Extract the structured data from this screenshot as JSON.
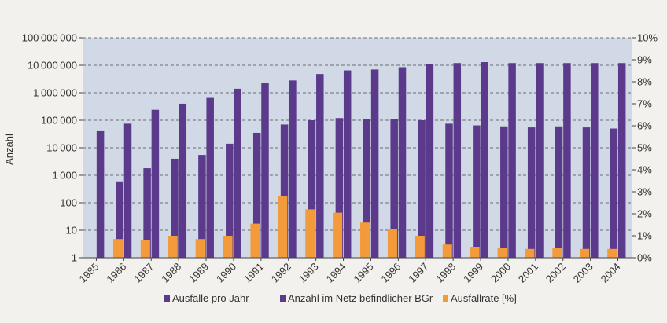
{
  "chart_data": {
    "type": "bar",
    "title": "",
    "xlabel": "",
    "ylabel": "Anzahl",
    "y_scale": "log",
    "ylim": [
      1,
      100000000
    ],
    "y2lim": [
      0,
      10
    ],
    "y_ticks": [
      "1",
      "10",
      "100",
      "1000",
      "10000",
      "100000",
      "1000000",
      "10000000",
      "100000000"
    ],
    "y2_ticks": [
      "0%",
      "1%",
      "2%",
      "3%",
      "4%",
      "5%",
      "6%",
      "7%",
      "8%",
      "9%",
      "10%"
    ],
    "grid": true,
    "legend_position": "bottom",
    "categories": [
      "1985",
      "1986",
      "1987",
      "1988",
      "1989",
      "1990",
      "1991",
      "1992",
      "1993",
      "1994",
      "1995",
      "1996",
      "1997",
      "1998",
      "1999",
      "2000",
      "2001",
      "2002",
      "2003",
      "2004"
    ],
    "series": [
      {
        "name": "Ausfälle pro Jahr",
        "axis": "left",
        "color": "#5b3a8c",
        "values": [
          null,
          600,
          1800,
          4000,
          5500,
          14000,
          35000,
          70000,
          100000,
          120000,
          110000,
          110000,
          100000,
          75000,
          65000,
          60000,
          55000,
          60000,
          55000,
          50000
        ]
      },
      {
        "name": "Anzahl im Netz befindlicher BGr",
        "axis": "left",
        "color": "#5b3a8c",
        "values": [
          40000,
          75000,
          240000,
          400000,
          650000,
          1400000,
          2300000,
          2800000,
          4800000,
          6500000,
          7000000,
          8500000,
          11000000,
          12000000,
          13000000,
          12000000,
          12000000,
          12000000,
          12000000,
          12000000
        ]
      },
      {
        "name": "Ausfallrate [%]",
        "axis": "right",
        "color": "#f39a3a",
        "values": [
          null,
          0.85,
          0.8,
          1.0,
          0.85,
          1.0,
          1.55,
          2.8,
          2.2,
          2.05,
          1.6,
          1.3,
          1.0,
          0.6,
          0.5,
          0.45,
          0.4,
          0.45,
          0.4,
          0.4
        ]
      }
    ]
  }
}
